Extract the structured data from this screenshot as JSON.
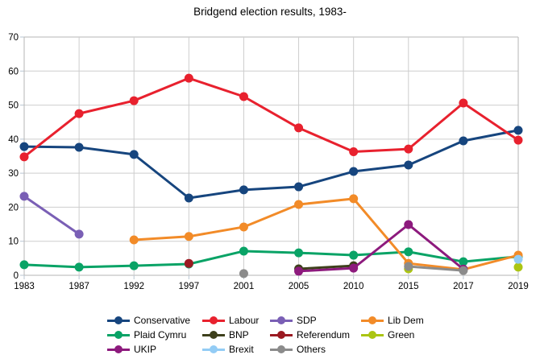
{
  "title": "Bridgend election results, 1983-",
  "chart_data": {
    "type": "line",
    "categories": [
      "1983",
      "1987",
      "1992",
      "1997",
      "2001",
      "2005",
      "2010",
      "2015",
      "2017",
      "2019"
    ],
    "ylim": [
      0,
      70
    ],
    "y_ticks": [
      0,
      10,
      20,
      30,
      40,
      50,
      60,
      70
    ],
    "grid": true,
    "legend_position": "bottom",
    "series": [
      {
        "name": "Conservative",
        "color": "#16457e",
        "values": [
          37.8,
          37.6,
          35.5,
          22.7,
          25.1,
          26.0,
          30.5,
          32.4,
          39.5,
          42.6
        ]
      },
      {
        "name": "Labour",
        "color": "#e8212e",
        "values": [
          34.8,
          47.5,
          51.3,
          57.9,
          52.5,
          43.3,
          36.3,
          37.1,
          50.6,
          39.7
        ]
      },
      {
        "name": "SDP",
        "color": "#7a5fb5",
        "values": [
          23.2,
          12.1,
          null,
          null,
          null,
          null,
          null,
          null,
          null,
          null
        ]
      },
      {
        "name": "Lib Dem",
        "color": "#f28b28",
        "values": [
          null,
          null,
          10.4,
          11.4,
          14.2,
          20.8,
          22.5,
          3.5,
          1.7,
          5.9
        ]
      },
      {
        "name": "Plaid Cymru",
        "color": "#09a366",
        "values": [
          3.1,
          2.4,
          2.8,
          3.3,
          7.1,
          6.6,
          5.9,
          6.9,
          4.0,
          5.5
        ]
      },
      {
        "name": "BNP",
        "color": "#3e401c",
        "values": [
          null,
          null,
          null,
          null,
          null,
          1.9,
          2.8,
          null,
          null,
          null
        ]
      },
      {
        "name": "Referendum",
        "color": "#9b1a22",
        "values": [
          null,
          null,
          null,
          3.5,
          null,
          null,
          null,
          null,
          null,
          null
        ]
      },
      {
        "name": "Green",
        "color": "#abc513",
        "values": [
          null,
          null,
          null,
          null,
          null,
          null,
          null,
          1.9,
          null,
          2.4
        ]
      },
      {
        "name": "UKIP",
        "color": "#8d1a7d",
        "values": [
          null,
          null,
          null,
          null,
          null,
          1.2,
          2.1,
          14.9,
          1.8,
          null
        ]
      },
      {
        "name": "Brexit",
        "color": "#93ccf5",
        "values": [
          null,
          null,
          null,
          null,
          null,
          null,
          null,
          null,
          null,
          4.7
        ]
      },
      {
        "name": "Others",
        "color": "#8b8b8b",
        "values": [
          null,
          null,
          null,
          null,
          0.5,
          null,
          null,
          2.6,
          1.4,
          null
        ]
      }
    ]
  }
}
